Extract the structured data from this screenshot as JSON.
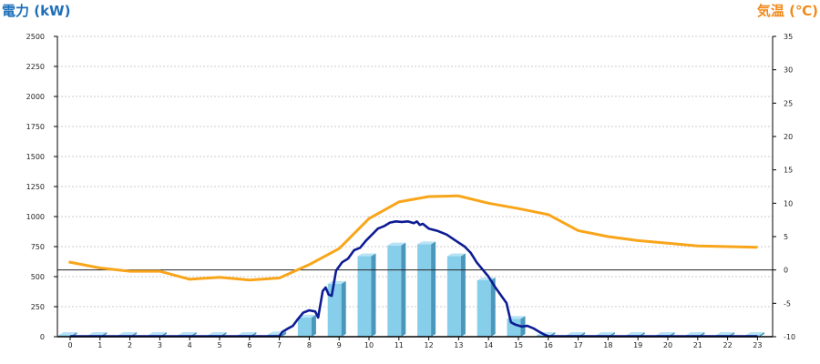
{
  "header": {
    "left_title": "電力 (kW)",
    "right_title": "気温 (℃)"
  },
  "chart_data": {
    "type": "bar",
    "categories": [
      "0",
      "1",
      "2",
      "3",
      "4",
      "5",
      "6",
      "7",
      "8",
      "9",
      "10",
      "11",
      "12",
      "13",
      "14",
      "15",
      "16",
      "17",
      "18",
      "19",
      "20",
      "21",
      "22",
      "23"
    ],
    "left_axis": {
      "label": "電力 (kW)",
      "range": [
        0,
        2500
      ],
      "ticks": [
        0,
        250,
        500,
        750,
        1000,
        1250,
        1500,
        1750,
        2000,
        2250,
        2500
      ]
    },
    "right_axis": {
      "label": "気温 (℃)",
      "range": [
        -10,
        35
      ],
      "ticks": [
        -10,
        -5,
        0,
        5,
        10,
        15,
        20,
        25,
        30,
        35
      ]
    },
    "grid": true,
    "bars": {
      "axis": "left",
      "values": [
        0,
        0,
        0,
        0,
        0,
        0,
        0,
        20,
        160,
        440,
        670,
        760,
        770,
        670,
        470,
        150,
        10,
        0,
        0,
        0,
        0,
        0,
        0,
        0
      ]
    },
    "power_line": {
      "axis": "left",
      "points": [
        [
          0,
          0
        ],
        [
          7,
          0
        ],
        [
          7.1,
          40
        ],
        [
          7.3,
          70
        ],
        [
          7.45,
          90
        ],
        [
          7.6,
          140
        ],
        [
          7.8,
          200
        ],
        [
          8,
          220
        ],
        [
          8.2,
          210
        ],
        [
          8.3,
          160
        ],
        [
          8.45,
          380
        ],
        [
          8.55,
          410
        ],
        [
          8.65,
          350
        ],
        [
          8.75,
          340
        ],
        [
          8.9,
          550
        ],
        [
          9.1,
          620
        ],
        [
          9.3,
          650
        ],
        [
          9.5,
          720
        ],
        [
          9.7,
          740
        ],
        [
          9.9,
          800
        ],
        [
          10.1,
          850
        ],
        [
          10.3,
          900
        ],
        [
          10.5,
          920
        ],
        [
          10.7,
          950
        ],
        [
          10.9,
          960
        ],
        [
          11.1,
          955
        ],
        [
          11.3,
          960
        ],
        [
          11.5,
          945
        ],
        [
          11.6,
          960
        ],
        [
          11.7,
          930
        ],
        [
          11.8,
          940
        ],
        [
          12,
          900
        ],
        [
          12.3,
          880
        ],
        [
          12.6,
          850
        ],
        [
          12.9,
          800
        ],
        [
          13.2,
          750
        ],
        [
          13.4,
          700
        ],
        [
          13.6,
          620
        ],
        [
          13.8,
          560
        ],
        [
          14,
          500
        ],
        [
          14.2,
          420
        ],
        [
          14.4,
          350
        ],
        [
          14.6,
          280
        ],
        [
          14.75,
          120
        ],
        [
          14.9,
          100
        ],
        [
          15.1,
          85
        ],
        [
          15.3,
          90
        ],
        [
          15.5,
          70
        ],
        [
          15.7,
          40
        ],
        [
          15.85,
          20
        ],
        [
          16,
          0
        ],
        [
          23,
          0
        ]
      ]
    },
    "temperature_line": {
      "axis": "right",
      "points": [
        [
          -0.05,
          1.2
        ],
        [
          1,
          0.3
        ],
        [
          2,
          -0.2
        ],
        [
          3,
          -0.2
        ],
        [
          4,
          -1.4
        ],
        [
          5,
          -1.1
        ],
        [
          6,
          -1.5
        ],
        [
          7,
          -1.2
        ],
        [
          8,
          0.8
        ],
        [
          9,
          3.2
        ],
        [
          10,
          7.7
        ],
        [
          11,
          10.2
        ],
        [
          12,
          11
        ],
        [
          13,
          11.1
        ],
        [
          14,
          10
        ],
        [
          15,
          9.2
        ],
        [
          16,
          8.3
        ],
        [
          17,
          5.9
        ],
        [
          18,
          5
        ],
        [
          19,
          4.4
        ],
        [
          20,
          4
        ],
        [
          21,
          3.6
        ],
        [
          22,
          3.5
        ],
        [
          23,
          3.4
        ]
      ]
    },
    "reference_line": {
      "axis": "right",
      "value": 0
    }
  },
  "colors": {
    "bar_front": "#87ceeb",
    "bar_top": "#b7e3f5",
    "bar_side": "#4a97bb",
    "power_line": "#0d1c94",
    "temperature_line": "#f9a51a",
    "grid": "#bbbbbb",
    "axis": "#000000"
  }
}
